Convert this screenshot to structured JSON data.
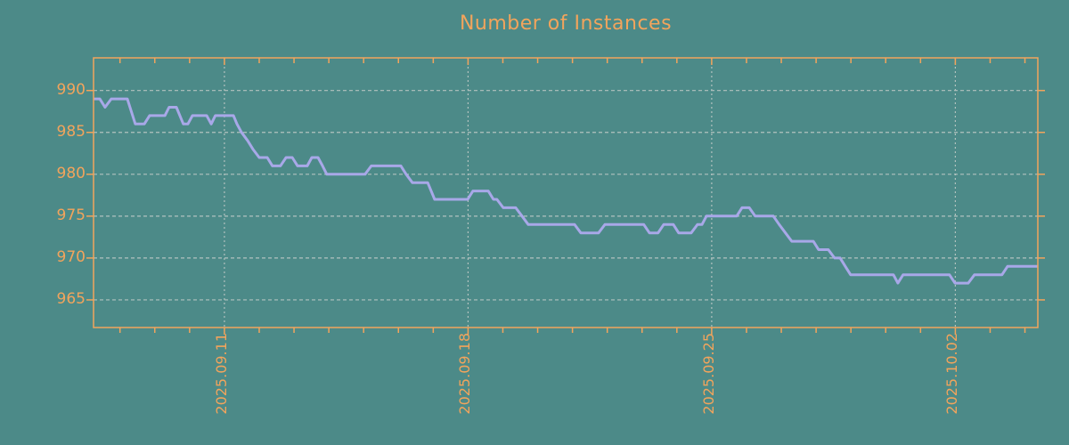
{
  "title": "Number of Instances",
  "colors": {
    "background": "#4C8A88",
    "accent_orange": "#F2A45C",
    "line": "#A8A8E8",
    "gridline": "#B2C2BF"
  },
  "chart_data": {
    "type": "line",
    "title": "Number of Instances",
    "xlabel": "",
    "ylabel": "",
    "grid": true,
    "legend_visible": false,
    "y_axis": {
      "ticks": [
        990,
        985,
        980,
        975,
        970,
        965
      ],
      "range": [
        961.7,
        993.9
      ]
    },
    "x_axis": {
      "major_ticks": [
        {
          "day_offset": 0,
          "label": "2025.09.11"
        },
        {
          "day_offset": 7,
          "label": "2025.09.18"
        },
        {
          "day_offset": 14,
          "label": "2025.09.25"
        },
        {
          "day_offset": 21,
          "label": "2025.10.02"
        }
      ],
      "minor_tick_every_days": 1,
      "range_days": [
        -3.76,
        23.37
      ]
    },
    "series": [
      {
        "name": "instances",
        "points": [
          [
            -3.76,
            989
          ],
          [
            -3.58,
            989
          ],
          [
            -3.43,
            988
          ],
          [
            -3.25,
            989
          ],
          [
            -2.79,
            989
          ],
          [
            -2.56,
            986
          ],
          [
            -2.3,
            986
          ],
          [
            -2.15,
            987
          ],
          [
            -1.71,
            987
          ],
          [
            -1.59,
            988
          ],
          [
            -1.38,
            988
          ],
          [
            -1.18,
            986
          ],
          [
            -1.05,
            986
          ],
          [
            -0.92,
            987
          ],
          [
            -0.51,
            987
          ],
          [
            -0.38,
            986
          ],
          [
            -0.26,
            987
          ],
          [
            0.26,
            987
          ],
          [
            0.36,
            986
          ],
          [
            0.49,
            985
          ],
          [
            0.67,
            984
          ],
          [
            0.82,
            983
          ],
          [
            1.0,
            982
          ],
          [
            1.23,
            982
          ],
          [
            1.38,
            981
          ],
          [
            1.61,
            981
          ],
          [
            1.77,
            982
          ],
          [
            1.95,
            982
          ],
          [
            2.1,
            981
          ],
          [
            2.38,
            981
          ],
          [
            2.51,
            982
          ],
          [
            2.69,
            982
          ],
          [
            2.82,
            981
          ],
          [
            2.94,
            980
          ],
          [
            4.04,
            980
          ],
          [
            4.22,
            981
          ],
          [
            5.07,
            981
          ],
          [
            5.22,
            980
          ],
          [
            5.4,
            979
          ],
          [
            5.84,
            979
          ],
          [
            5.94,
            978
          ],
          [
            6.04,
            977
          ],
          [
            6.99,
            977
          ],
          [
            7.14,
            978
          ],
          [
            7.58,
            978
          ],
          [
            7.73,
            977
          ],
          [
            7.83,
            977
          ],
          [
            8.01,
            976
          ],
          [
            8.37,
            976
          ],
          [
            8.55,
            975
          ],
          [
            8.73,
            974
          ],
          [
            10.06,
            974
          ],
          [
            10.24,
            973
          ],
          [
            10.75,
            973
          ],
          [
            10.93,
            974
          ],
          [
            12.05,
            974
          ],
          [
            12.21,
            973
          ],
          [
            12.46,
            973
          ],
          [
            12.62,
            974
          ],
          [
            12.9,
            974
          ],
          [
            13.05,
            973
          ],
          [
            13.41,
            973
          ],
          [
            13.59,
            974
          ],
          [
            13.72,
            974
          ],
          [
            13.85,
            975
          ],
          [
            14.72,
            975
          ],
          [
            14.87,
            976
          ],
          [
            15.08,
            976
          ],
          [
            15.25,
            975
          ],
          [
            15.77,
            975
          ],
          [
            15.94,
            974
          ],
          [
            16.12,
            973
          ],
          [
            16.3,
            972
          ],
          [
            16.92,
            972
          ],
          [
            17.07,
            971
          ],
          [
            17.35,
            971
          ],
          [
            17.53,
            970
          ],
          [
            17.69,
            970
          ],
          [
            17.84,
            969
          ],
          [
            17.99,
            968
          ],
          [
            19.22,
            968
          ],
          [
            19.35,
            967
          ],
          [
            19.5,
            968
          ],
          [
            20.83,
            968
          ],
          [
            20.99,
            967
          ],
          [
            21.37,
            967
          ],
          [
            21.55,
            968
          ],
          [
            22.34,
            968
          ],
          [
            22.5,
            969
          ],
          [
            23.37,
            969
          ]
        ]
      }
    ]
  }
}
